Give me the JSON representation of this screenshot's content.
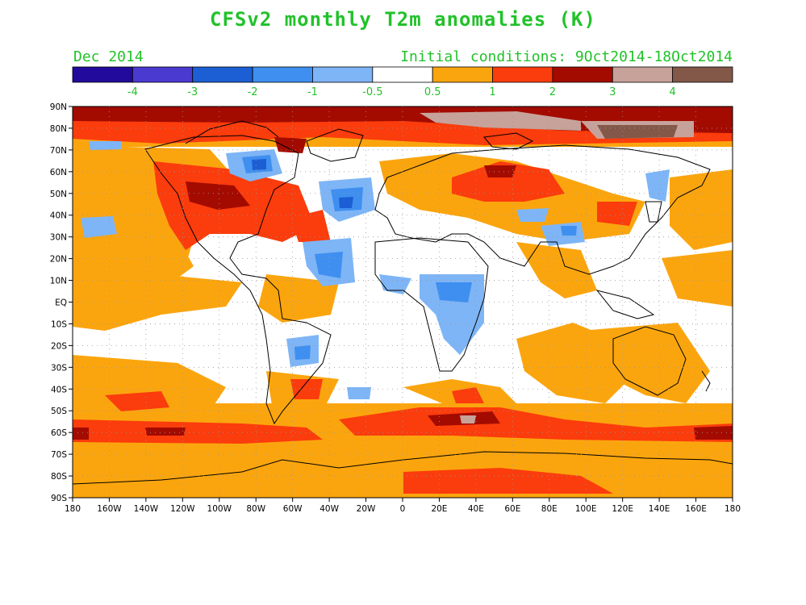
{
  "title": "CFSv2 monthly T2m anomalies (K)",
  "valid_month": "Dec 2014",
  "initial_conditions": "Initial conditions: 9Oct2014-18Oct2014",
  "colorbar": {
    "colors": [
      "#220a9c",
      "#4a3ad0",
      "#1c5fd4",
      "#3f8ff0",
      "#7eb5f6",
      "#ffffff",
      "#fba50e",
      "#fb3c0c",
      "#a30b00",
      "#c7a29a",
      "#835849"
    ],
    "labels": [
      "-4",
      "-3",
      "-2",
      "-1",
      "-0.5",
      "0.5",
      "1",
      "2",
      "3",
      "4"
    ]
  },
  "map": {
    "lat_labels": [
      "90N",
      "80N",
      "70N",
      "60N",
      "50N",
      "40N",
      "30N",
      "20N",
      "10N",
      "EQ",
      "10S",
      "20S",
      "30S",
      "40S",
      "50S",
      "60S",
      "70S",
      "80S",
      "90S"
    ],
    "lon_labels": [
      "180",
      "160W",
      "140W",
      "120W",
      "100W",
      "80W",
      "60W",
      "40W",
      "20W",
      "0",
      "20E",
      "40E",
      "60E",
      "80E",
      "100E",
      "120E",
      "140E",
      "160E",
      "180"
    ],
    "land_color": "#ffffff",
    "ocean_color": "#ffffff",
    "grid": true
  }
}
